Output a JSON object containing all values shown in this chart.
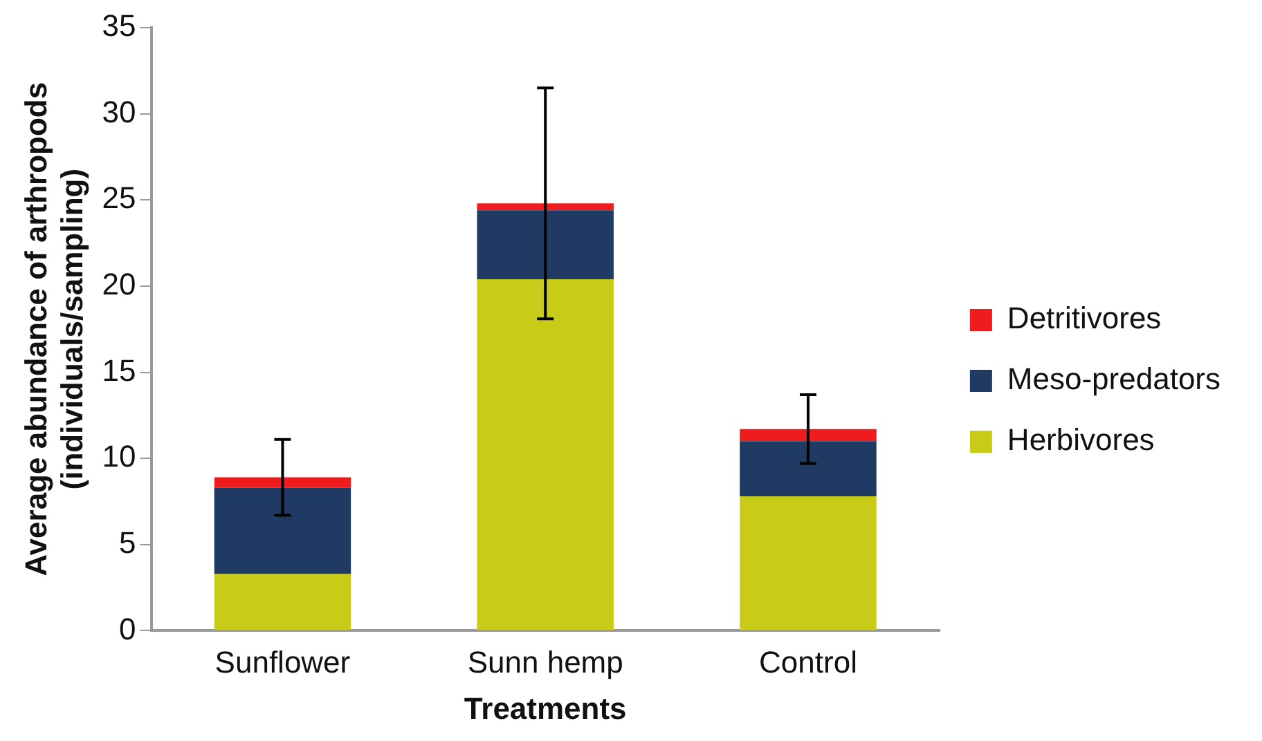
{
  "chart_data": {
    "type": "bar",
    "stacked": true,
    "xlabel": "Treatments",
    "ylabel": "Average abundance of arthropods (individuals/sampling)",
    "categories": [
      "Sunflower",
      "Sunn hemp",
      "Control"
    ],
    "series": [
      {
        "name": "Herbivores",
        "color": "#c8cc18",
        "values": [
          3.3,
          20.4,
          7.8
        ]
      },
      {
        "name": "Meso-predators",
        "color": "#1f3b63",
        "values": [
          5.0,
          4.0,
          3.2
        ]
      },
      {
        "name": "Detritivores",
        "color": "#ee1c1c",
        "values": [
          0.6,
          0.4,
          0.7
        ],
        "errors": [
          2.2,
          6.7,
          2.0
        ]
      }
    ],
    "ylim": [
      0,
      35
    ],
    "yticks": [
      0,
      5,
      10,
      15,
      20,
      25,
      30,
      35
    ],
    "grid": false,
    "legend": "right"
  }
}
